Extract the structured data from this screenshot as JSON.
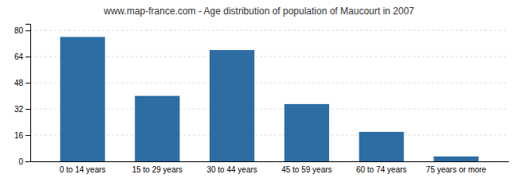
{
  "chart_data": {
    "type": "bar",
    "title": "www.map-france.com - Age distribution of population of Maucourt in 2007",
    "categories": [
      "0 to 14 years",
      "15 to 29 years",
      "30 to 44 years",
      "45 to 59 years",
      "60 to 74 years",
      "75 years or more"
    ],
    "values": [
      76,
      40,
      68,
      35,
      18,
      3
    ],
    "color": "#2e6da4",
    "ylim": [
      0,
      84
    ],
    "yticks": [
      0,
      16,
      32,
      48,
      64,
      80
    ],
    "grid": true
  }
}
